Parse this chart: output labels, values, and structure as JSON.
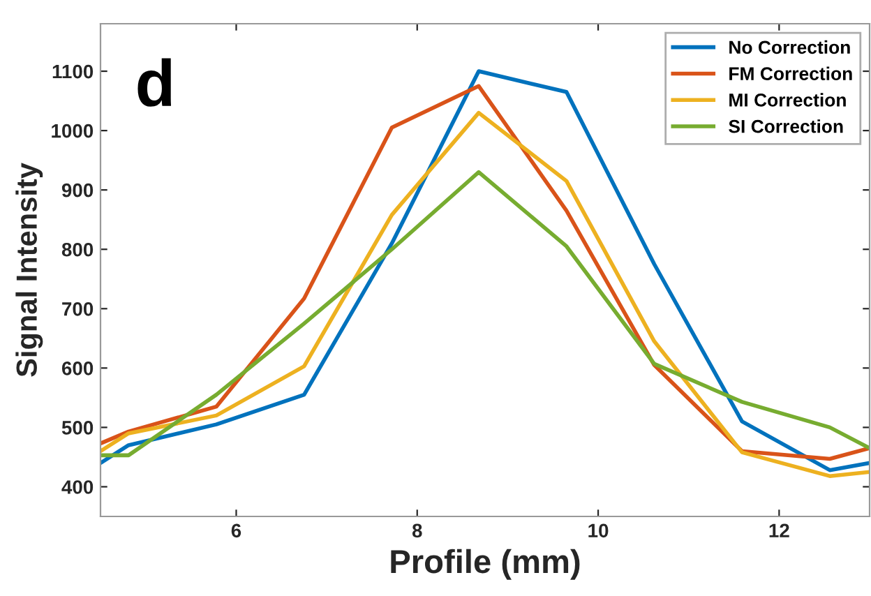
{
  "chart_data": {
    "type": "line",
    "title": "d",
    "xlabel": "Profile (mm)",
    "ylabel": "Signal Intensity",
    "x": [
      4.5,
      4.81,
      5.78,
      6.75,
      7.72,
      8.68,
      9.65,
      10.62,
      11.59,
      12.56,
      13.0
    ],
    "xlim": [
      4.5,
      13
    ],
    "xticks": [
      6,
      8,
      10,
      12
    ],
    "ylim": [
      350,
      1180
    ],
    "yticks": [
      400,
      500,
      600,
      700,
      800,
      900,
      1000,
      1100
    ],
    "grid": false,
    "legend": "top right",
    "marker": "none",
    "line_style": "solid",
    "series": [
      {
        "name": "No Correction",
        "color": "#0072bd",
        "values": [
          440,
          470,
          505,
          555,
          810,
          1100,
          1065,
          775,
          510,
          428,
          440
        ]
      },
      {
        "name": "FM Correction",
        "color": "#d95319",
        "values": [
          473,
          493,
          535,
          717,
          1005,
          1075,
          865,
          605,
          460,
          447,
          465
        ]
      },
      {
        "name": "MI Correction",
        "color": "#edb120",
        "values": [
          460,
          490,
          520,
          603,
          858,
          1030,
          915,
          645,
          458,
          418,
          425
        ]
      },
      {
        "name": "SI Correction",
        "color": "#77ac30",
        "values": [
          453,
          453,
          555,
          675,
          800,
          930,
          805,
          607,
          543,
          500,
          465
        ]
      }
    ]
  }
}
